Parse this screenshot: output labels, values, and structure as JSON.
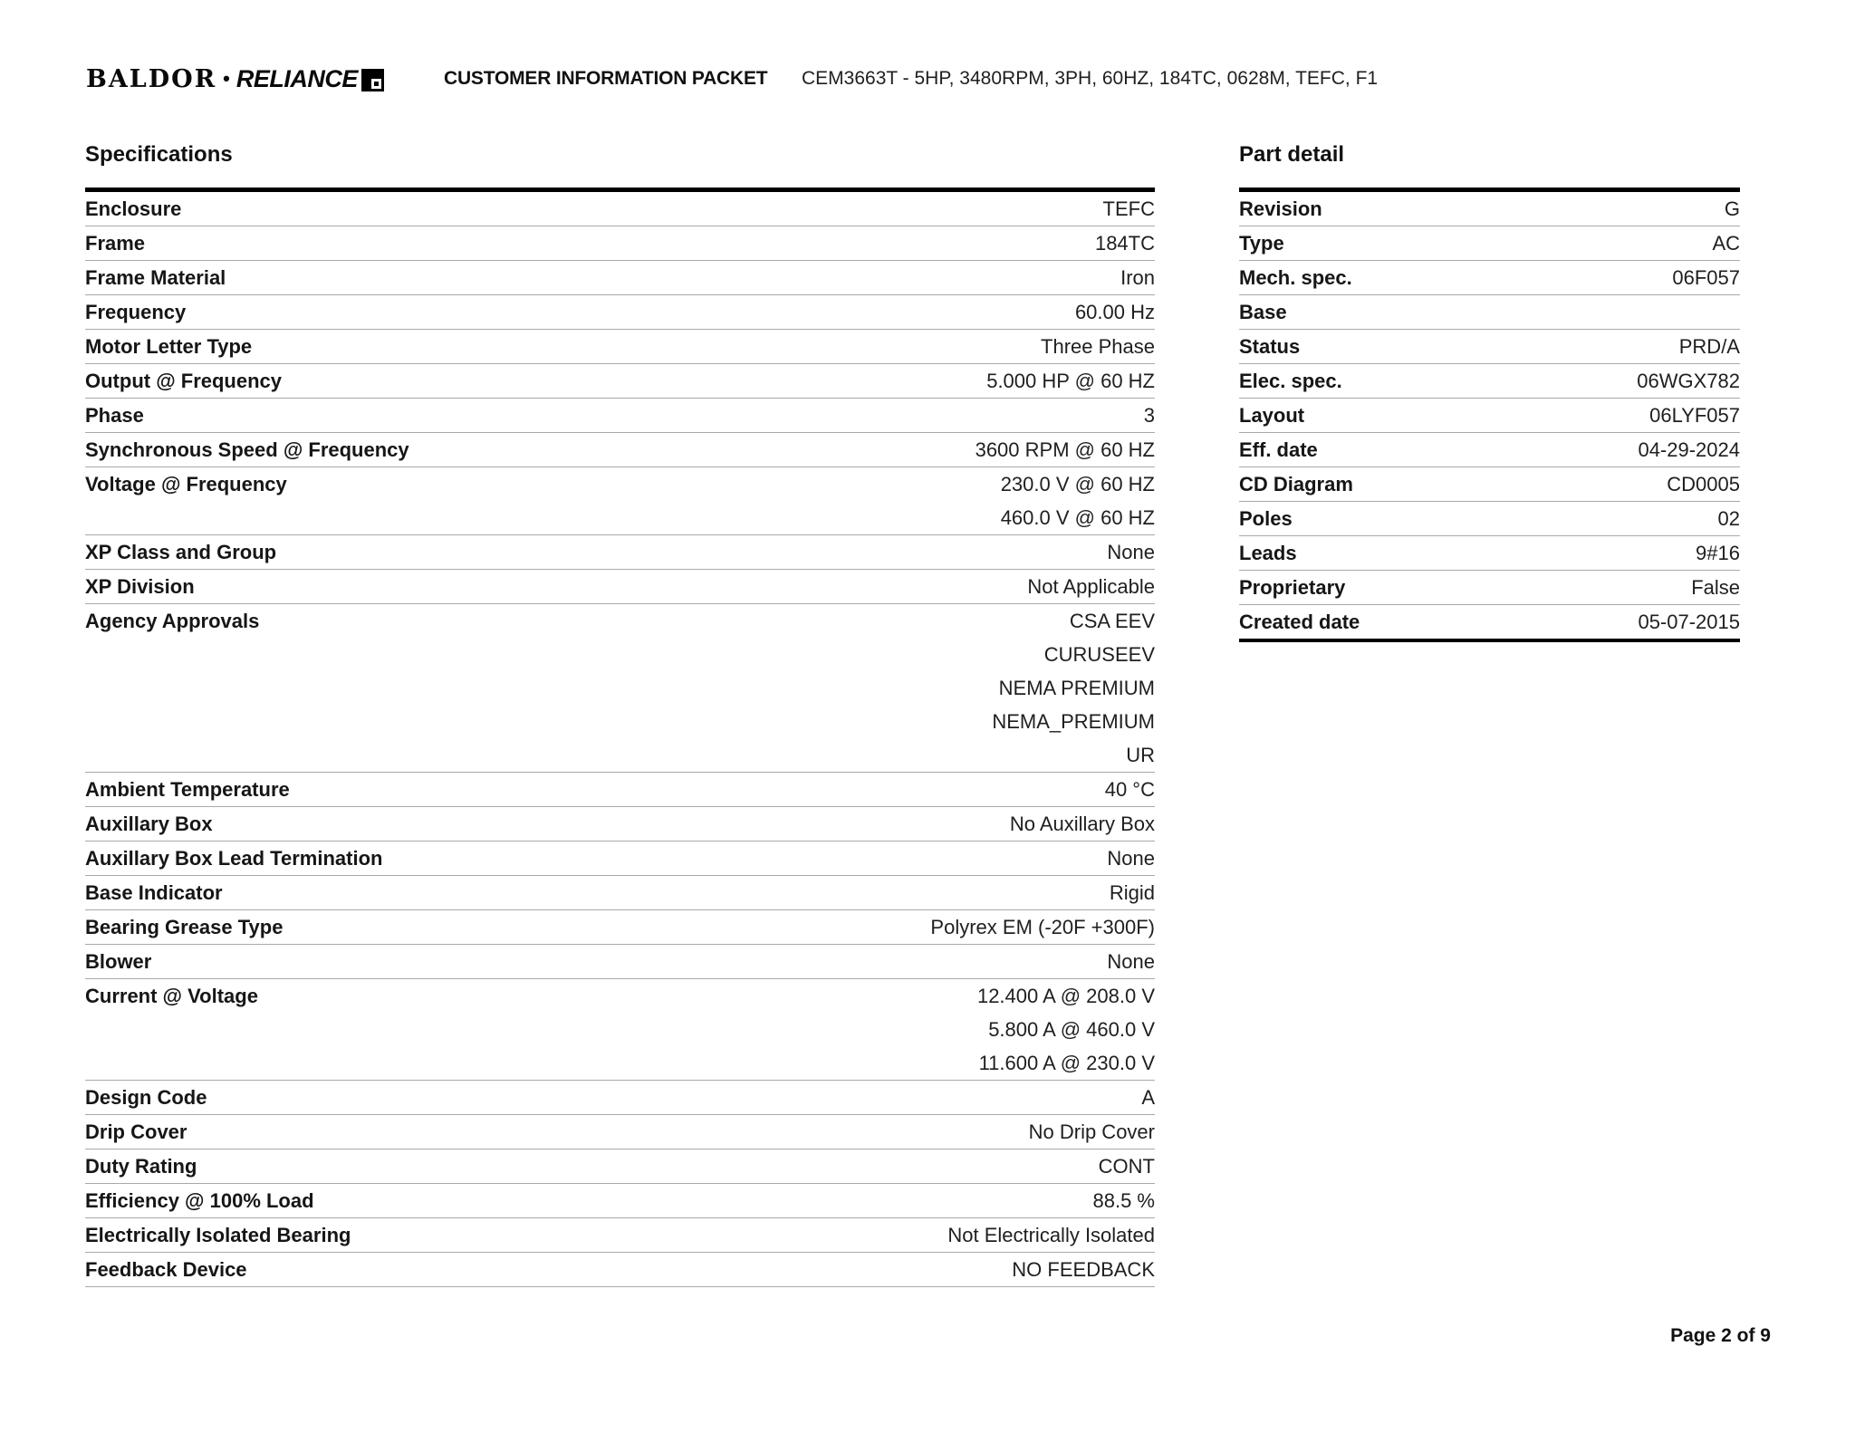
{
  "header": {
    "logo_baldor": "BALDOR",
    "logo_separator": "•",
    "logo_reliance": "RELIANCE",
    "doc_title": "CUSTOMER INFORMATION PACKET",
    "product_code": "CEM3663T - 5HP, 3480RPM, 3PH, 60HZ, 184TC, 0628M, TEFC, F1"
  },
  "specifications": {
    "title": "Specifications",
    "rows": [
      {
        "label": "Enclosure",
        "values": [
          "TEFC"
        ]
      },
      {
        "label": "Frame",
        "values": [
          "184TC"
        ]
      },
      {
        "label": "Frame Material",
        "values": [
          "Iron"
        ]
      },
      {
        "label": "Frequency",
        "values": [
          "60.00 Hz"
        ]
      },
      {
        "label": "Motor Letter Type",
        "values": [
          "Three Phase"
        ]
      },
      {
        "label": "Output @ Frequency",
        "values": [
          "5.000 HP @ 60 HZ"
        ]
      },
      {
        "label": "Phase",
        "values": [
          "3"
        ]
      },
      {
        "label": "Synchronous Speed @ Frequency",
        "values": [
          "3600 RPM @ 60 HZ"
        ]
      },
      {
        "label": "Voltage @ Frequency",
        "values": [
          "230.0 V @ 60 HZ",
          "460.0 V @ 60 HZ"
        ]
      },
      {
        "label": "XP Class and Group",
        "values": [
          "None"
        ]
      },
      {
        "label": "XP Division",
        "values": [
          "Not Applicable"
        ]
      },
      {
        "label": "Agency Approvals",
        "values": [
          "CSA EEV",
          "CURUSEEV",
          "NEMA PREMIUM",
          "NEMA_PREMIUM",
          "UR"
        ]
      },
      {
        "label": "Ambient Temperature",
        "values": [
          "40 °C"
        ]
      },
      {
        "label": "Auxillary Box",
        "values": [
          "No Auxillary Box"
        ]
      },
      {
        "label": "Auxillary Box Lead Termination",
        "values": [
          "None"
        ]
      },
      {
        "label": "Base Indicator",
        "values": [
          "Rigid"
        ]
      },
      {
        "label": "Bearing Grease Type",
        "values": [
          "Polyrex EM (-20F +300F)"
        ]
      },
      {
        "label": "Blower",
        "values": [
          "None"
        ]
      },
      {
        "label": "Current @ Voltage",
        "values": [
          "12.400 A @ 208.0 V",
          "5.800 A @ 460.0 V",
          "11.600 A @ 230.0 V"
        ]
      },
      {
        "label": "Design Code",
        "values": [
          "A"
        ]
      },
      {
        "label": "Drip Cover",
        "values": [
          "No Drip Cover"
        ]
      },
      {
        "label": "Duty Rating",
        "values": [
          "CONT"
        ]
      },
      {
        "label": "Efficiency @ 100% Load",
        "values": [
          "88.5 %"
        ]
      },
      {
        "label": "Electrically Isolated Bearing",
        "values": [
          "Not Electrically Isolated"
        ]
      },
      {
        "label": "Feedback Device",
        "values": [
          "NO FEEDBACK"
        ]
      }
    ]
  },
  "part_detail": {
    "title": "Part detail",
    "rows": [
      {
        "label": "Revision",
        "values": [
          "G"
        ]
      },
      {
        "label": "Type",
        "values": [
          "AC"
        ]
      },
      {
        "label": "Mech. spec.",
        "values": [
          "06F057"
        ]
      },
      {
        "label": "Base",
        "values": [
          ""
        ]
      },
      {
        "label": "Status",
        "values": [
          "PRD/A"
        ]
      },
      {
        "label": "Elec. spec.",
        "values": [
          "06WGX782"
        ]
      },
      {
        "label": "Layout",
        "values": [
          "06LYF057"
        ]
      },
      {
        "label": "Eff. date",
        "values": [
          "04-29-2024"
        ]
      },
      {
        "label": "CD Diagram",
        "values": [
          "CD0005"
        ]
      },
      {
        "label": "Poles",
        "values": [
          "02"
        ]
      },
      {
        "label": "Leads",
        "values": [
          "9#16"
        ]
      },
      {
        "label": "Proprietary",
        "values": [
          "False"
        ]
      },
      {
        "label": "Created date",
        "values": [
          "05-07-2015"
        ]
      }
    ]
  },
  "footer": {
    "page_label": "Page 2 of 9"
  },
  "colors": {
    "brand_black": "#000000",
    "separator_gray": "#a9a9a9",
    "text": "#1c1c1c"
  }
}
